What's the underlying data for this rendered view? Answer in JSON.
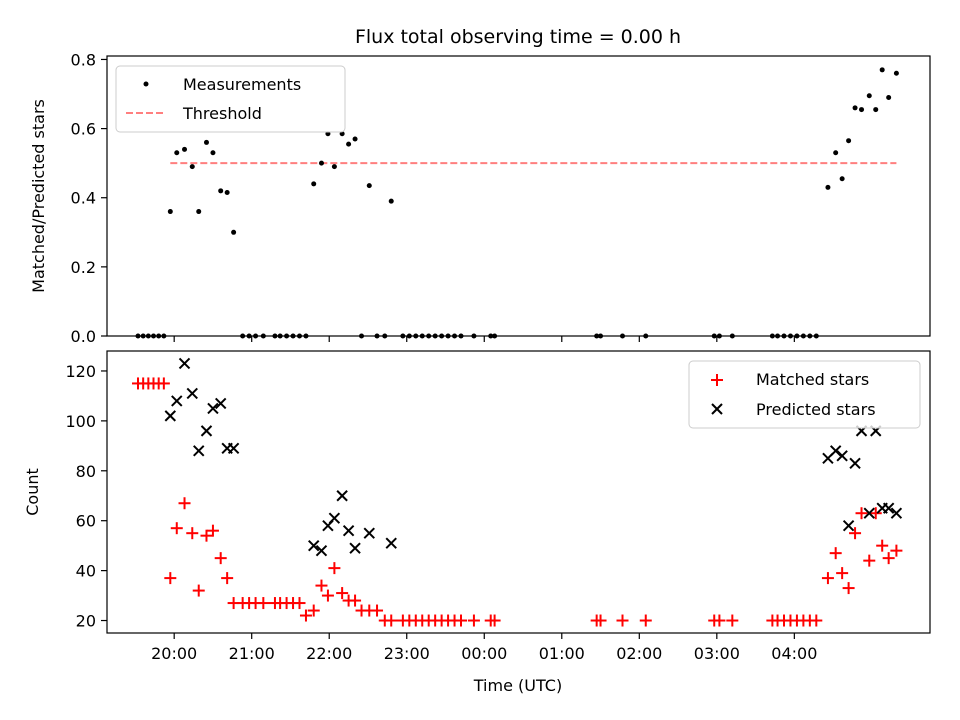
{
  "chart_data": [
    {
      "type": "scatter",
      "title": "Flux total observing time = 0.00 h",
      "ylabel": "Matched/Predicted stars",
      "ylim": [
        0,
        0.81
      ],
      "yticks": [
        0.0,
        0.2,
        0.4,
        0.6,
        0.8
      ],
      "ytick_labels": [
        "0.0",
        "0.2",
        "0.4",
        "0.6",
        "0.8"
      ],
      "x_tick_labels_hidden": true,
      "legend_position": "top-left",
      "series": [
        {
          "name": "Measurements",
          "marker": "dot",
          "color": "#000000",
          "points": [
            [
              "19:32",
              0
            ],
            [
              "19:36",
              0
            ],
            [
              "19:40",
              0
            ],
            [
              "19:44",
              0
            ],
            [
              "19:48",
              0
            ],
            [
              "19:52",
              0
            ],
            [
              "19:57",
              0.36
            ],
            [
              "20:02",
              0.53
            ],
            [
              "20:08",
              0.54
            ],
            [
              "20:14",
              0.49
            ],
            [
              "20:19",
              0.36
            ],
            [
              "20:25",
              0.56
            ],
            [
              "20:30",
              0.53
            ],
            [
              "20:36",
              0.42
            ],
            [
              "20:41",
              0.415
            ],
            [
              "20:46",
              0.3
            ],
            [
              "20:53",
              0
            ],
            [
              "20:58",
              0
            ],
            [
              "21:03",
              0
            ],
            [
              "21:09",
              0
            ],
            [
              "21:18",
              0
            ],
            [
              "21:22",
              0
            ],
            [
              "21:27",
              0
            ],
            [
              "21:32",
              0
            ],
            [
              "21:37",
              0
            ],
            [
              "21:42",
              0
            ],
            [
              "21:48",
              0.44
            ],
            [
              "21:54",
              0.5
            ],
            [
              "21:59",
              0.585
            ],
            [
              "22:04",
              0.49
            ],
            [
              "22:10",
              0.585
            ],
            [
              "22:15",
              0.555
            ],
            [
              "22:20",
              0.57
            ],
            [
              "22:25",
              0
            ],
            [
              "22:31",
              0.435
            ],
            [
              "22:37",
              0
            ],
            [
              "22:43",
              0
            ],
            [
              "22:48",
              0.39
            ],
            [
              "22:57",
              0
            ],
            [
              "23:02",
              0
            ],
            [
              "23:07",
              0
            ],
            [
              "23:12",
              0
            ],
            [
              "23:17",
              0
            ],
            [
              "23:22",
              0
            ],
            [
              "23:27",
              0
            ],
            [
              "23:32",
              0
            ],
            [
              "23:37",
              0
            ],
            [
              "23:42",
              0
            ],
            [
              "23:52",
              0
            ],
            [
              "24:05",
              0
            ],
            [
              "24:08",
              0
            ],
            [
              "25:27",
              0
            ],
            [
              "25:30",
              0
            ],
            [
              "25:47",
              0
            ],
            [
              "26:05",
              0
            ],
            [
              "26:58",
              0
            ],
            [
              "27:02",
              0
            ],
            [
              "27:12",
              0
            ],
            [
              "27:43",
              0
            ],
            [
              "27:47",
              0
            ],
            [
              "27:52",
              0
            ],
            [
              "27:57",
              0
            ],
            [
              "28:02",
              0
            ],
            [
              "28:07",
              0
            ],
            [
              "28:12",
              0
            ],
            [
              "28:17",
              0
            ],
            [
              "28:26",
              0.43
            ],
            [
              "28:32",
              0.53
            ],
            [
              "28:37",
              0.455
            ],
            [
              "28:42",
              0.565
            ],
            [
              "28:47",
              0.66
            ],
            [
              "28:52",
              0.655
            ],
            [
              "28:58",
              0.695
            ],
            [
              "29:03",
              0.655
            ],
            [
              "29:08",
              0.77
            ],
            [
              "29:13",
              0.69
            ],
            [
              "29:19",
              0.76
            ]
          ]
        },
        {
          "name": "Threshold",
          "style": "dashed",
          "color": "#ff7f7f",
          "x": [
            "19:57",
            "29:19"
          ],
          "y": [
            0.5,
            0.5
          ]
        }
      ]
    },
    {
      "type": "scatter",
      "xlabel": "Time (UTC)",
      "ylabel": "Count",
      "ylim": [
        15,
        128
      ],
      "yticks": [
        20,
        40,
        60,
        80,
        100,
        120
      ],
      "ytick_labels": [
        "20",
        "40",
        "60",
        "80",
        "100",
        "120"
      ],
      "xlim": [
        "19:08",
        "29:45"
      ],
      "xticks": [
        "20:00",
        "21:00",
        "22:00",
        "23:00",
        "00:00",
        "01:00",
        "02:00",
        "03:00",
        "04:00"
      ],
      "xtick_hours": [
        20,
        21,
        22,
        23,
        24,
        25,
        26,
        27,
        28
      ],
      "legend_position": "top-right",
      "series": [
        {
          "name": "Matched stars",
          "marker": "plus",
          "color": "#ff0000",
          "points": [
            [
              "19:32",
              115
            ],
            [
              "19:36",
              115
            ],
            [
              "19:40",
              115
            ],
            [
              "19:44",
              115
            ],
            [
              "19:48",
              115
            ],
            [
              "19:52",
              115
            ],
            [
              "19:57",
              37
            ],
            [
              "20:02",
              57
            ],
            [
              "20:08",
              67
            ],
            [
              "20:14",
              55
            ],
            [
              "20:19",
              32
            ],
            [
              "20:25",
              54
            ],
            [
              "20:30",
              56
            ],
            [
              "20:36",
              45
            ],
            [
              "20:41",
              37
            ],
            [
              "20:46",
              27
            ],
            [
              "20:53",
              27
            ],
            [
              "20:58",
              27
            ],
            [
              "21:03",
              27
            ],
            [
              "21:09",
              27
            ],
            [
              "21:18",
              27
            ],
            [
              "21:22",
              27
            ],
            [
              "21:27",
              27
            ],
            [
              "21:32",
              27
            ],
            [
              "21:37",
              27
            ],
            [
              "21:42",
              22
            ],
            [
              "21:48",
              24
            ],
            [
              "21:54",
              34
            ],
            [
              "21:59",
              30
            ],
            [
              "22:04",
              41
            ],
            [
              "22:10",
              31
            ],
            [
              "22:15",
              28
            ],
            [
              "22:20",
              28
            ],
            [
              "22:25",
              24
            ],
            [
              "22:31",
              24
            ],
            [
              "22:37",
              24
            ],
            [
              "22:43",
              20
            ],
            [
              "22:48",
              20
            ],
            [
              "22:57",
              20
            ],
            [
              "23:02",
              20
            ],
            [
              "23:07",
              20
            ],
            [
              "23:12",
              20
            ],
            [
              "23:17",
              20
            ],
            [
              "23:22",
              20
            ],
            [
              "23:27",
              20
            ],
            [
              "23:32",
              20
            ],
            [
              "23:37",
              20
            ],
            [
              "23:42",
              20
            ],
            [
              "23:52",
              20
            ],
            [
              "24:05",
              20
            ],
            [
              "24:08",
              20
            ],
            [
              "25:27",
              20
            ],
            [
              "25:30",
              20
            ],
            [
              "25:47",
              20
            ],
            [
              "26:05",
              20
            ],
            [
              "26:58",
              20
            ],
            [
              "27:02",
              20
            ],
            [
              "27:12",
              20
            ],
            [
              "27:43",
              20
            ],
            [
              "27:47",
              20
            ],
            [
              "27:52",
              20
            ],
            [
              "27:57",
              20
            ],
            [
              "28:02",
              20
            ],
            [
              "28:07",
              20
            ],
            [
              "28:12",
              20
            ],
            [
              "28:17",
              20
            ],
            [
              "28:26",
              37
            ],
            [
              "28:32",
              47
            ],
            [
              "28:37",
              39
            ],
            [
              "28:42",
              33
            ],
            [
              "28:47",
              55
            ],
            [
              "28:52",
              63
            ],
            [
              "28:58",
              44
            ],
            [
              "29:03",
              63
            ],
            [
              "29:08",
              50
            ],
            [
              "29:13",
              45
            ],
            [
              "29:19",
              48
            ]
          ]
        },
        {
          "name": "Predicted stars",
          "marker": "x",
          "color": "#000000",
          "points": [
            [
              "19:57",
              102
            ],
            [
              "20:02",
              108
            ],
            [
              "20:08",
              123
            ],
            [
              "20:14",
              111
            ],
            [
              "20:19",
              88
            ],
            [
              "20:25",
              96
            ],
            [
              "20:30",
              105
            ],
            [
              "20:36",
              107
            ],
            [
              "20:41",
              89
            ],
            [
              "20:46",
              89
            ],
            [
              "21:48",
              50
            ],
            [
              "21:54",
              48
            ],
            [
              "21:59",
              58
            ],
            [
              "22:04",
              61
            ],
            [
              "22:10",
              70
            ],
            [
              "22:15",
              56
            ],
            [
              "22:20",
              49
            ],
            [
              "22:31",
              55
            ],
            [
              "22:48",
              51
            ],
            [
              "28:26",
              85
            ],
            [
              "28:32",
              88
            ],
            [
              "28:37",
              86
            ],
            [
              "28:42",
              58
            ],
            [
              "28:47",
              83
            ],
            [
              "28:52",
              96
            ],
            [
              "28:58",
              63
            ],
            [
              "29:03",
              96
            ],
            [
              "29:08",
              65
            ],
            [
              "29:13",
              65
            ],
            [
              "29:19",
              63
            ]
          ]
        }
      ]
    }
  ]
}
